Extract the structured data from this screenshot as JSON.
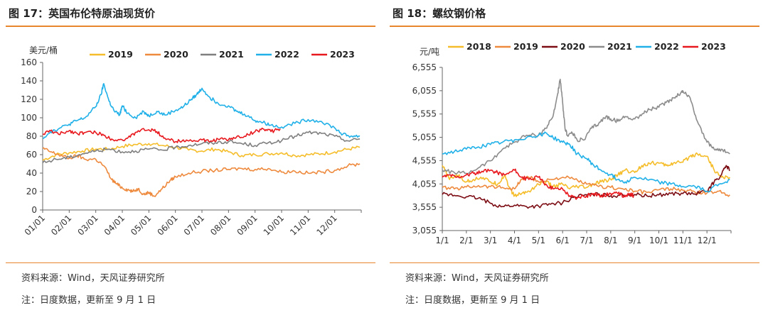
{
  "left": {
    "title": "图 17：英国布伦特原油现货价",
    "source": "资料来源：Wind，天风证券研究所",
    "note": "注：日度数据，更新至 9 月 1 日"
  },
  "right": {
    "title": "图 18：螺纹钢价格",
    "source": "资料来源：Wind，天风证券研究所",
    "note": "注：日度数据，更新至 9 月 1 日"
  },
  "chart_data": [
    {
      "type": "line",
      "title": "",
      "ylabel": "美元/桶",
      "xlabel": "",
      "categories": [
        "01/01",
        "02/01",
        "03/01",
        "04/01",
        "05/01",
        "06/01",
        "07/01",
        "08/01",
        "09/01",
        "10/01",
        "11/01",
        "12/01"
      ],
      "ylim": [
        0,
        160
      ],
      "yticks": [
        0,
        20,
        40,
        60,
        80,
        100,
        120,
        140,
        160
      ],
      "grid": false,
      "legend": "top",
      "series": [
        {
          "name": "2019",
          "color": "#f5bd2a",
          "x": [
            0,
            0.5,
            1,
            1.5,
            2,
            2.5,
            3,
            3.5,
            4,
            4.5,
            5,
            5.5,
            6,
            6.5,
            7,
            7.5,
            8,
            8.5,
            9,
            9.5,
            10,
            10.5,
            11,
            11.5,
            11.95
          ],
          "values": [
            54,
            60,
            62,
            64,
            66,
            66,
            69,
            71,
            72,
            70,
            68,
            65,
            64,
            66,
            63,
            59,
            60,
            61,
            62,
            59,
            60,
            61,
            63,
            66,
            68
          ]
        },
        {
          "name": "2020",
          "color": "#ee8a3e",
          "x": [
            0,
            0.3,
            0.6,
            1,
            1.3,
            1.6,
            2,
            2.3,
            2.6,
            2.8,
            3,
            3.2,
            3.4,
            3.6,
            3.8,
            4,
            4.2,
            4.5,
            4.8,
            5,
            5.5,
            6,
            6.5,
            7,
            7.5,
            8,
            8.5,
            9,
            9.5,
            10,
            10.5,
            11,
            11.5,
            11.95
          ],
          "values": [
            67,
            63,
            60,
            56,
            59,
            55,
            55,
            48,
            33,
            28,
            24,
            22,
            20,
            23,
            17,
            19,
            15,
            23,
            32,
            36,
            40,
            42,
            43,
            44,
            45,
            44,
            45,
            41,
            42,
            40,
            41,
            43,
            48,
            50
          ]
        },
        {
          "name": "2021",
          "color": "#7f7f7f",
          "x": [
            0,
            0.5,
            1,
            1.5,
            2,
            2.5,
            3,
            3.5,
            4,
            4.5,
            5,
            5.5,
            6,
            6.5,
            7,
            7.5,
            8,
            8.5,
            9,
            9.5,
            10,
            10.5,
            11,
            11.5,
            11.95
          ],
          "values": [
            51,
            55,
            57,
            61,
            64,
            66,
            63,
            64,
            66,
            65,
            68,
            70,
            72,
            73,
            74,
            72,
            70,
            73,
            75,
            80,
            84,
            83,
            80,
            75,
            77
          ]
        },
        {
          "name": "2022",
          "color": "#21b1e8",
          "x": [
            0,
            0.3,
            0.6,
            1,
            1.3,
            1.6,
            2,
            2.2,
            2.3,
            2.5,
            2.7,
            2.9,
            3,
            3.2,
            3.5,
            3.8,
            4,
            4.3,
            4.6,
            5,
            5.3,
            5.6,
            5.8,
            6,
            6.3,
            6.6,
            7,
            7.3,
            7.6,
            8,
            8.3,
            8.6,
            9,
            9.5,
            10,
            10.5,
            11,
            11.3,
            11.6,
            11.95
          ],
          "values": [
            78,
            85,
            88,
            93,
            97,
            100,
            112,
            125,
            137,
            118,
            107,
            103,
            113,
            105,
            100,
            107,
            102,
            107,
            103,
            108,
            112,
            120,
            125,
            132,
            122,
            116,
            113,
            107,
            104,
            97,
            95,
            92,
            90,
            94,
            98,
            96,
            89,
            82,
            80,
            80
          ]
        },
        {
          "name": "2023",
          "color": "#e8191e",
          "x": [
            0,
            0.3,
            0.6,
            1,
            1.3,
            1.6,
            2,
            2.3,
            2.6,
            3,
            3.3,
            3.6,
            4,
            4.3,
            4.6,
            5,
            5.3,
            5.6,
            6,
            6.3,
            6.6,
            7,
            7.3,
            7.6,
            8,
            8.3,
            8.6,
            8.95
          ],
          "values": [
            82,
            86,
            82,
            86,
            83,
            84,
            84,
            81,
            77,
            76,
            79,
            86,
            87,
            85,
            78,
            74,
            76,
            75,
            76,
            74,
            77,
            76,
            79,
            80,
            85,
            88,
            85,
            88
          ]
        }
      ]
    },
    {
      "type": "line",
      "title": "",
      "ylabel": "元/吨",
      "xlabel": "",
      "categories": [
        "1/1",
        "2/1",
        "3/1",
        "4/1",
        "5/1",
        "6/1",
        "7/1",
        "8/1",
        "9/1",
        "10/1",
        "11/1",
        "12/1"
      ],
      "ylim": [
        3055,
        6555
      ],
      "yticks": [
        3055,
        3555,
        4055,
        4555,
        5055,
        5555,
        6055,
        6555
      ],
      "grid": false,
      "legend": "top",
      "series": [
        {
          "name": "2018",
          "color": "#f5bd2a",
          "x": [
            0,
            0.3,
            0.6,
            1,
            1.3,
            1.6,
            2,
            2.3,
            2.6,
            2.8,
            3,
            3.3,
            3.6,
            4,
            4.3,
            4.6,
            5,
            5.3,
            5.6,
            6,
            6.3,
            6.6,
            7,
            7.3,
            7.6,
            8,
            8.3,
            8.6,
            9,
            9.3,
            9.6,
            10,
            10.3,
            10.6,
            11,
            11.3,
            11.6,
            11.95
          ],
          "values": [
            4450,
            4150,
            4250,
            4100,
            4150,
            4200,
            4100,
            4050,
            4250,
            3950,
            3800,
            3850,
            3900,
            4050,
            4100,
            4000,
            4050,
            3950,
            4000,
            3980,
            4050,
            4100,
            4150,
            4250,
            4350,
            4300,
            4450,
            4500,
            4500,
            4450,
            4500,
            4520,
            4650,
            4700,
            4650,
            4350,
            4200,
            4200
          ]
        },
        {
          "name": "2019",
          "color": "#ee8a3e",
          "x": [
            0,
            0.5,
            1,
            1.5,
            2,
            2.5,
            3,
            3.3,
            3.6,
            4,
            4.5,
            5,
            5.5,
            6,
            6.5,
            7,
            7.5,
            8,
            8.5,
            9,
            9.5,
            10,
            10.5,
            11,
            11.5,
            11.95
          ],
          "values": [
            3980,
            3950,
            3990,
            4020,
            4000,
            3980,
            3950,
            4150,
            4200,
            4100,
            4150,
            4200,
            4150,
            4050,
            4000,
            3980,
            3950,
            3900,
            3870,
            3930,
            3950,
            3920,
            3880,
            3860,
            3900,
            3820
          ]
        },
        {
          "name": "2020",
          "color": "#7c0d14",
          "x": [
            0,
            0.5,
            1,
            1.5,
            2,
            2.5,
            3,
            3.5,
            4,
            4.5,
            5,
            5.5,
            6,
            6.5,
            7,
            7.5,
            8,
            8.5,
            9,
            9.5,
            10,
            10.5,
            11,
            11.3,
            11.6,
            11.8,
            11.95
          ],
          "values": [
            3830,
            3810,
            3780,
            3750,
            3640,
            3570,
            3600,
            3570,
            3580,
            3620,
            3650,
            3780,
            3820,
            3830,
            3800,
            3820,
            3830,
            3800,
            3820,
            3850,
            3850,
            3840,
            3900,
            4100,
            4250,
            4450,
            4350
          ]
        },
        {
          "name": "2021",
          "color": "#8c8c8c",
          "x": [
            0,
            0.5,
            1,
            1.5,
            2,
            2.5,
            3,
            3.5,
            4,
            4.3,
            4.6,
            4.8,
            4.9,
            5,
            5.1,
            5.2,
            5.4,
            5.6,
            5.9,
            6.2,
            6.5,
            6.8,
            7,
            7.3,
            7.6,
            8,
            8.3,
            8.6,
            9,
            9.3,
            9.6,
            9.9,
            10,
            10.3,
            10.6,
            11,
            11.3,
            11.6,
            11.95
          ],
          "values": [
            4350,
            4300,
            4280,
            4400,
            4550,
            4800,
            4950,
            5100,
            5100,
            5250,
            5500,
            6000,
            6300,
            5800,
            5250,
            5100,
            5150,
            5000,
            5000,
            5250,
            5350,
            5500,
            5450,
            5400,
            5500,
            5450,
            5550,
            5650,
            5700,
            5800,
            5900,
            6000,
            6050,
            5900,
            5400,
            4950,
            4800,
            4800,
            4700
          ]
        },
        {
          "name": "2022",
          "color": "#21b1e8",
          "x": [
            0,
            0.5,
            1,
            1.5,
            2,
            2.5,
            3,
            3.5,
            4,
            4.3,
            4.6,
            5,
            5.3,
            5.6,
            6,
            6.3,
            6.6,
            7,
            7.3,
            7.6,
            8,
            8.5,
            9,
            9.5,
            10,
            10.5,
            11,
            11.5,
            11.95
          ],
          "values": [
            4700,
            4750,
            4800,
            4850,
            4900,
            4950,
            5000,
            5050,
            5100,
            5150,
            5050,
            4950,
            4900,
            4700,
            4600,
            4450,
            4350,
            4250,
            4150,
            4100,
            4200,
            4150,
            4100,
            4050,
            4000,
            4000,
            3900,
            4050,
            4150
          ]
        },
        {
          "name": "2023",
          "color": "#e8191e",
          "x": [
            0,
            0.3,
            0.6,
            1,
            1.3,
            1.6,
            2,
            2.3,
            2.6,
            3,
            3.3,
            3.6,
            4,
            4.3,
            4.6,
            5,
            5.3,
            5.6,
            6,
            6.3,
            6.6,
            7,
            7.3,
            7.6,
            7.8,
            7.95
          ],
          "values": [
            4200,
            4250,
            4200,
            4250,
            4280,
            4300,
            4350,
            4300,
            4250,
            4350,
            4200,
            4150,
            4200,
            4050,
            3950,
            3950,
            3800,
            3750,
            3800,
            3850,
            3800,
            3850,
            3850,
            3780,
            3850,
            3800
          ]
        }
      ]
    }
  ]
}
